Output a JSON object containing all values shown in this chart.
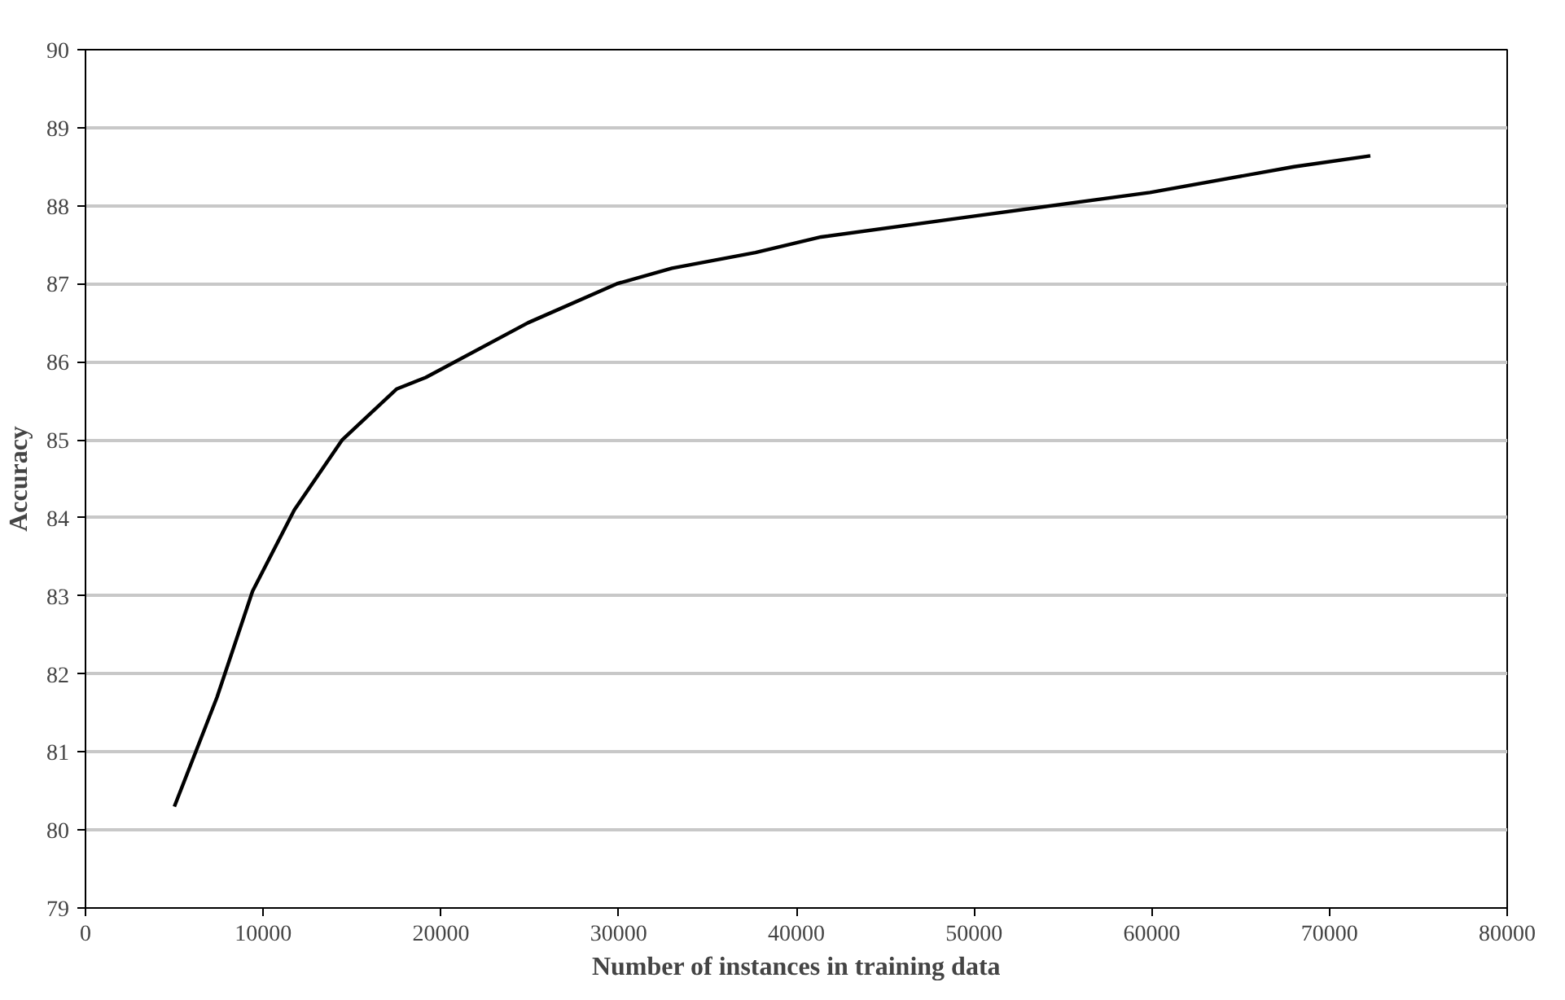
{
  "chart_data": {
    "type": "line",
    "xlabel": "Number of instances in training data",
    "ylabel": "Accuracy",
    "x": [
      5000,
      7400,
      9400,
      11750,
      14450,
      17500,
      19150,
      24900,
      29900,
      33000,
      37700,
      41400,
      50100,
      59900,
      68000,
      72300
    ],
    "series": [
      {
        "color": "#000000",
        "values": [
          80.3,
          81.7,
          83.06,
          84.1,
          85.0,
          85.65,
          85.8,
          86.5,
          87.0,
          87.2,
          87.4,
          87.6,
          87.87,
          88.17,
          88.5,
          88.64
        ]
      }
    ],
    "xlim": [
      0,
      80000
    ],
    "ylim": [
      79,
      90
    ],
    "xticks": [
      0,
      10000,
      20000,
      30000,
      40000,
      50000,
      60000,
      70000,
      80000
    ],
    "yticks": [
      79,
      80,
      81,
      82,
      83,
      84,
      85,
      86,
      87,
      88,
      89,
      90
    ],
    "grid": "y",
    "marker": "none",
    "line_style": "solid"
  }
}
